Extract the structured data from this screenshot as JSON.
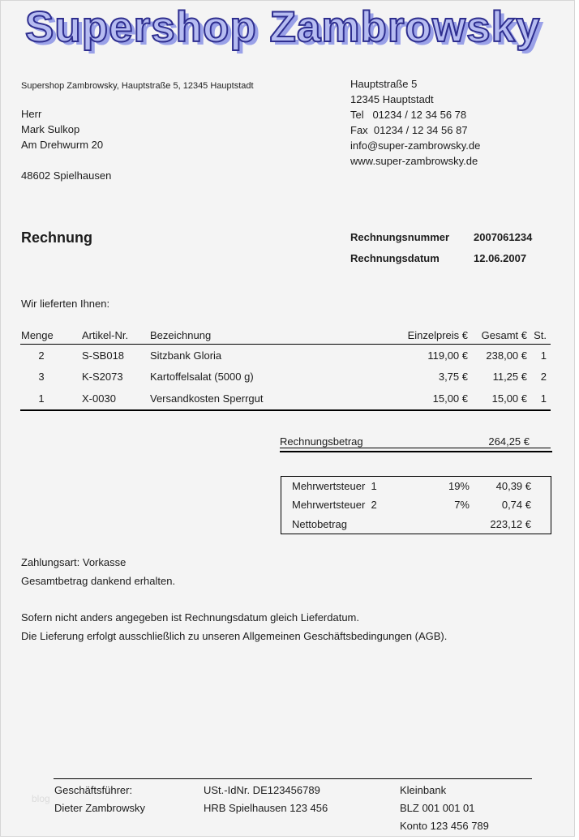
{
  "brand": {
    "title": "Supershop Zambrowsky",
    "fill_color": "#b6bcf1",
    "outline_color": "#2e2e8f",
    "shadow_color": "#9aa1e8"
  },
  "sender_line": "Supershop Zambrowsky, Hauptstraße 5, 12345 Hauptstadt",
  "recipient": {
    "salutation": "Herr",
    "name": "Mark Sulkop",
    "street": "Am Drehwurm 20",
    "city": "48602 Spielhausen"
  },
  "contact": {
    "street": "Hauptstraße 5",
    "city": "12345 Hauptstadt",
    "tel": "Tel   01234 / 12 34 56 78",
    "fax": "Fax  01234 / 12 34 56 87",
    "email": "info@super-zambrowsky.de",
    "website": "www.super-zambrowsky.de"
  },
  "invoice": {
    "title": "Rechnung",
    "number_label": "Rechnungsnummer",
    "number": "2007061234",
    "date_label": "Rechnungsdatum",
    "date": "12.06.2007",
    "intro": "Wir lieferten Ihnen:"
  },
  "items_table": {
    "headers": {
      "menge": "Menge",
      "artikel": "Artikel-Nr.",
      "bezeichnung": "Bezeichnung",
      "einzelpreis": "Einzelpreis €",
      "gesamt": "Gesamt €",
      "st": "St."
    },
    "rows": [
      {
        "menge": "2",
        "artikel": "S-SB018",
        "bezeichnung": "Sitzbank Gloria",
        "einzelpreis": "119,00 €",
        "gesamt": "238,00 €",
        "st": "1"
      },
      {
        "menge": "3",
        "artikel": "K-S2073",
        "bezeichnung": "Kartoffelsalat (5000 g)",
        "einzelpreis": "3,75 €",
        "gesamt": "11,25 €",
        "st": "2"
      },
      {
        "menge": "1",
        "artikel": "X-0030",
        "bezeichnung": "Versandkosten Sperrgut",
        "einzelpreis": "15,00 €",
        "gesamt": "15,00 €",
        "st": "1"
      }
    ]
  },
  "totals": {
    "betrag_label": "Rechnungsbetrag",
    "betrag": "264,25 €"
  },
  "tax_box": {
    "rows": [
      {
        "label": "Mehrwertsteuer  1",
        "rate": "19%",
        "amount": "40,39 €"
      },
      {
        "label": "Mehrwertsteuer  2",
        "rate": "7%",
        "amount": "0,74 €"
      },
      {
        "label": "Nettobetrag",
        "rate": "",
        "amount": "223,12 €"
      }
    ]
  },
  "payment": {
    "line1": "Zahlungsart: Vorkasse",
    "line2": "Gesamtbetrag dankend erhalten."
  },
  "notes": {
    "line1": "Sofern nicht anders angegeben ist Rechnungsdatum gleich Lieferdatum.",
    "line2": "Die Lieferung erfolgt ausschließlich zu unseren Allgemeinen Geschäftsbedingungen (AGB)."
  },
  "footer": {
    "col1": [
      "Geschäftsführer:",
      "Dieter Zambrowsky"
    ],
    "col2": [
      "USt.-IdNr. DE123456789",
      "HRB Spielhausen 123 456"
    ],
    "col3": [
      "Kleinbank",
      "BLZ 001 001 01",
      "Konto 123 456 789"
    ]
  },
  "watermark": "blog"
}
